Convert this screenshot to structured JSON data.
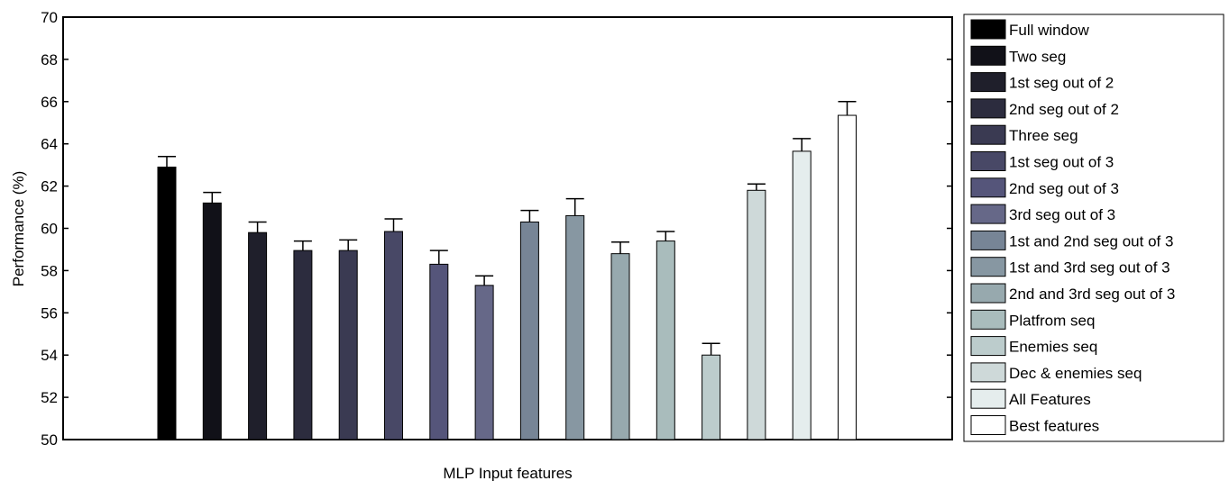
{
  "chart_data": {
    "type": "bar",
    "title": "",
    "xlabel": "MLP Input features",
    "ylabel": "Performance (%)",
    "ylim": [
      50,
      70
    ],
    "yticks": [
      50,
      52,
      54,
      56,
      58,
      60,
      62,
      64,
      66,
      68,
      70
    ],
    "grid": false,
    "legend_position": "right",
    "error_bars": true,
    "series": [
      {
        "name": "Full window",
        "value": 62.9,
        "error": 0.5,
        "color": "#000000"
      },
      {
        "name": "Two seg",
        "value": 61.2,
        "error": 0.5,
        "color": "#111118"
      },
      {
        "name": "1st seg out of 2",
        "value": 59.8,
        "error": 0.5,
        "color": "#1f1f2b"
      },
      {
        "name": "2nd seg out of 2",
        "value": 58.95,
        "error": 0.45,
        "color": "#2c2c3e"
      },
      {
        "name": "Three seg",
        "value": 58.95,
        "error": 0.5,
        "color": "#3a3a52"
      },
      {
        "name": "1st seg out of 3",
        "value": 59.85,
        "error": 0.6,
        "color": "#484866"
      },
      {
        "name": "2nd seg out of 3",
        "value": 58.3,
        "error": 0.65,
        "color": "#55557a"
      },
      {
        "name": "3rd seg out of 3",
        "value": 57.3,
        "error": 0.45,
        "color": "#666888"
      },
      {
        "name": "1st and 2nd seg out of 3",
        "value": 60.3,
        "error": 0.55,
        "color": "#778596"
      },
      {
        "name": "1st and 3rd seg out of 3",
        "value": 60.6,
        "error": 0.8,
        "color": "#8797a2"
      },
      {
        "name": "2nd and 3rd seg out of 3",
        "value": 58.8,
        "error": 0.55,
        "color": "#97a9ae"
      },
      {
        "name": "Platfrom seq",
        "value": 59.4,
        "error": 0.45,
        "color": "#a9bcbc"
      },
      {
        "name": "Enemies seq",
        "value": 54.0,
        "error": 0.55,
        "color": "#bccccc"
      },
      {
        "name": "Dec & enemies seq",
        "value": 61.8,
        "error": 0.3,
        "color": "#ced9d9"
      },
      {
        "name": "All Features",
        "value": 63.65,
        "error": 0.6,
        "color": "#e5eded"
      },
      {
        "name": "Best features",
        "value": 65.35,
        "error": 0.65,
        "color": "#ffffff"
      }
    ]
  }
}
